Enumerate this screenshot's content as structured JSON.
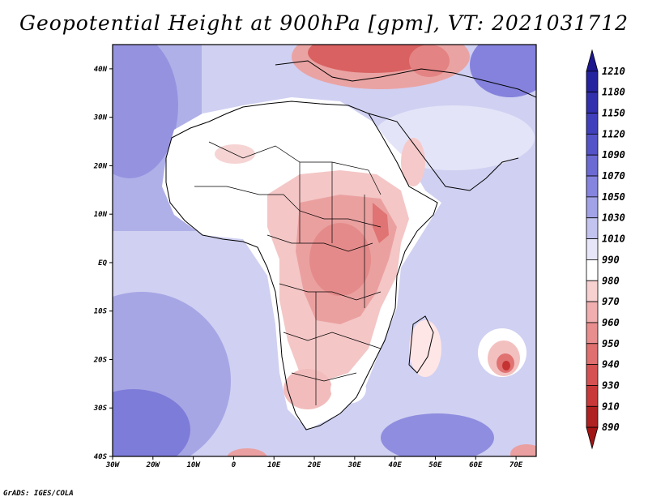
{
  "title": "Geopotential Height at 900hPa [gpm], VT: 2021031712",
  "credit": "GrADS: IGES/COLA",
  "map": {
    "region": "Africa",
    "variable": "Geopotential Height",
    "level": "900hPa",
    "units": "gpm",
    "valid_time": "2021031712",
    "lat_labels": [
      "40N",
      "30N",
      "20N",
      "10N",
      "EQ",
      "10S",
      "20S",
      "30S",
      "40S"
    ],
    "lon_labels": [
      "30W",
      "20W",
      "10W",
      "0",
      "10E",
      "20E",
      "30E",
      "40E",
      "50E",
      "60E",
      "70E"
    ],
    "lat_values": [
      40,
      30,
      20,
      10,
      0,
      -10,
      -20,
      -30,
      -40
    ],
    "lon_values": [
      -30,
      -20,
      -10,
      0,
      10,
      20,
      30,
      40,
      50,
      60,
      70
    ],
    "extent": {
      "lon_min": -30,
      "lon_max": 75,
      "lat_min": -40,
      "lat_max": 45
    }
  },
  "colorbar": {
    "labels": [
      "1210",
      "1180",
      "1150",
      "1120",
      "1090",
      "1070",
      "1050",
      "1030",
      "1010",
      "990",
      "980",
      "970",
      "960",
      "950",
      "940",
      "930",
      "910",
      "890"
    ],
    "colors": [
      "#1d1890",
      "#26239f",
      "#3230ad",
      "#4140bc",
      "#5553c8",
      "#6c6bd3",
      "#8584de",
      "#a2a2e7",
      "#c3c3f0",
      "#e6e6f8",
      "#ffffff",
      "#f7d0d0",
      "#f0aeae",
      "#e88e8e",
      "#e06f6f",
      "#d65252",
      "#c93939",
      "#b02121",
      "#a31515"
    ]
  }
}
